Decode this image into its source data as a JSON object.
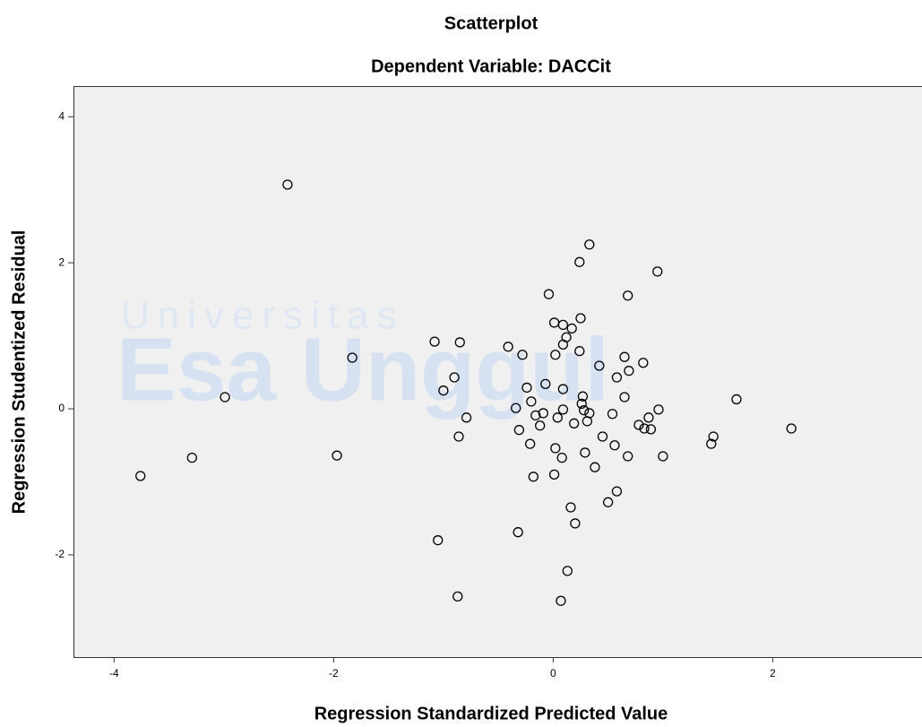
{
  "chart_data": {
    "type": "scatter",
    "title": "Scatterplot",
    "subtitle": "Dependent Variable: DACCit",
    "x_label": "Regression Standardized Predicted Value",
    "y_label": "Regression Studentized Residual",
    "watermark": [
      "Universitas",
      "Esa Unggul"
    ],
    "xlim": [
      -4.37,
      3.36
    ],
    "ylim": [
      -3.4,
      4.42
    ],
    "xticks": [
      -4,
      -2,
      0,
      2
    ],
    "yticks": [
      -2,
      0,
      2,
      4
    ],
    "grid": false,
    "color": "#000000",
    "background": "#f0f0f0",
    "x": [
      -2.42,
      0.33,
      0.24,
      0.95,
      -0.04,
      0.68,
      0.25,
      0.01,
      0.09,
      0.17,
      0.12,
      0.09,
      -1.08,
      -0.85,
      -0.41,
      -0.28,
      0.02,
      0.24,
      0.65,
      -1.83,
      0.82,
      0.42,
      0.69,
      0.58,
      -0.9,
      -1.0,
      -0.07,
      -0.24,
      0.09,
      -2.99,
      0.27,
      0.65,
      1.67,
      -0.2,
      0.26,
      -0.34,
      0.09,
      0.28,
      0.96,
      -0.09,
      -0.16,
      0.33,
      0.54,
      0.04,
      -0.79,
      0.87,
      0.31,
      0.19,
      -0.12,
      0.78,
      0.83,
      2.17,
      0.89,
      -0.31,
      1.46,
      -0.86,
      0.45,
      1.44,
      -0.21,
      0.56,
      0.02,
      0.29,
      0.08,
      -1.97,
      -3.29,
      1.0,
      0.68,
      0.38,
      0.01,
      -0.18,
      -3.76,
      0.58,
      0.5,
      0.16,
      0.2,
      -0.32,
      -1.05,
      0.13,
      -0.87,
      0.07
    ],
    "values": [
      3.07,
      2.25,
      2.01,
      1.88,
      1.57,
      1.55,
      1.24,
      1.18,
      1.15,
      1.1,
      0.98,
      0.88,
      0.92,
      0.91,
      0.85,
      0.74,
      0.74,
      0.79,
      0.71,
      0.7,
      0.63,
      0.59,
      0.52,
      0.43,
      0.43,
      0.25,
      0.34,
      0.29,
      0.27,
      0.16,
      0.17,
      0.16,
      0.13,
      0.1,
      0.07,
      0.01,
      -0.01,
      -0.02,
      -0.01,
      -0.06,
      -0.09,
      -0.06,
      -0.07,
      -0.12,
      -0.12,
      -0.12,
      -0.17,
      -0.2,
      -0.23,
      -0.22,
      -0.27,
      -0.27,
      -0.28,
      -0.29,
      -0.38,
      -0.38,
      -0.38,
      -0.48,
      -0.48,
      -0.5,
      -0.54,
      -0.6,
      -0.67,
      -0.64,
      -0.67,
      -0.65,
      -0.65,
      -0.8,
      -0.9,
      -0.93,
      -0.92,
      -1.13,
      -1.28,
      -1.35,
      -1.57,
      -1.69,
      -1.8,
      -2.22,
      -2.57,
      -2.63
    ]
  }
}
